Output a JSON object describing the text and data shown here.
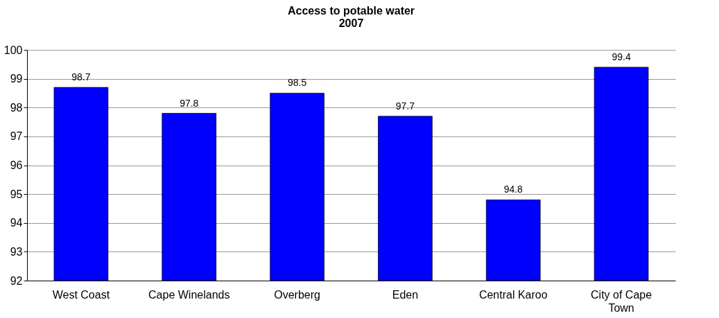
{
  "chart_data": {
    "type": "bar",
    "title": "Access to potable water",
    "subtitle": "2007",
    "categories": [
      "West Coast",
      "Cape Winelands",
      "Overberg",
      "Eden",
      "Central Karoo",
      "City of Cape Town"
    ],
    "values": [
      98.7,
      97.8,
      98.5,
      97.7,
      94.8,
      99.4
    ],
    "color": "#0000ff",
    "ylim": [
      92,
      100
    ],
    "yticks": [
      92,
      93,
      94,
      95,
      96,
      97,
      98,
      99,
      100
    ],
    "grid": "y",
    "data_labels": true
  }
}
